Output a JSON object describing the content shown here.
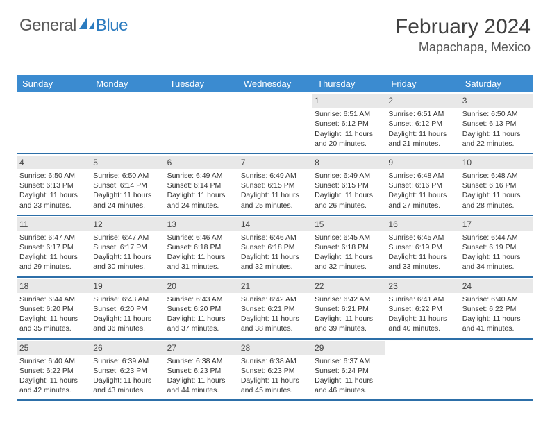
{
  "brand": {
    "name_part1": "General",
    "name_part2": "Blue",
    "accent_color": "#2b7bbf"
  },
  "header": {
    "month_title": "February 2024",
    "location": "Mapachapa, Mexico"
  },
  "colors": {
    "header_bg": "#3b8bd0",
    "row_border": "#2d6fa8",
    "daynum_bg": "#e8e8e8",
    "text": "#333333"
  },
  "layout": {
    "columns": 7,
    "rows": 5,
    "cell_font_size": 10.5
  },
  "day_names": [
    "Sunday",
    "Monday",
    "Tuesday",
    "Wednesday",
    "Thursday",
    "Friday",
    "Saturday"
  ],
  "weeks": [
    [
      null,
      null,
      null,
      null,
      {
        "n": 1,
        "sr": "6:51 AM",
        "ss": "6:12 PM",
        "dh": "11",
        "dm": "20"
      },
      {
        "n": 2,
        "sr": "6:51 AM",
        "ss": "6:12 PM",
        "dh": "11",
        "dm": "21"
      },
      {
        "n": 3,
        "sr": "6:50 AM",
        "ss": "6:13 PM",
        "dh": "11",
        "dm": "22"
      }
    ],
    [
      {
        "n": 4,
        "sr": "6:50 AM",
        "ss": "6:13 PM",
        "dh": "11",
        "dm": "23"
      },
      {
        "n": 5,
        "sr": "6:50 AM",
        "ss": "6:14 PM",
        "dh": "11",
        "dm": "24"
      },
      {
        "n": 6,
        "sr": "6:49 AM",
        "ss": "6:14 PM",
        "dh": "11",
        "dm": "24"
      },
      {
        "n": 7,
        "sr": "6:49 AM",
        "ss": "6:15 PM",
        "dh": "11",
        "dm": "25"
      },
      {
        "n": 8,
        "sr": "6:49 AM",
        "ss": "6:15 PM",
        "dh": "11",
        "dm": "26"
      },
      {
        "n": 9,
        "sr": "6:48 AM",
        "ss": "6:16 PM",
        "dh": "11",
        "dm": "27"
      },
      {
        "n": 10,
        "sr": "6:48 AM",
        "ss": "6:16 PM",
        "dh": "11",
        "dm": "28"
      }
    ],
    [
      {
        "n": 11,
        "sr": "6:47 AM",
        "ss": "6:17 PM",
        "dh": "11",
        "dm": "29"
      },
      {
        "n": 12,
        "sr": "6:47 AM",
        "ss": "6:17 PM",
        "dh": "11",
        "dm": "30"
      },
      {
        "n": 13,
        "sr": "6:46 AM",
        "ss": "6:18 PM",
        "dh": "11",
        "dm": "31"
      },
      {
        "n": 14,
        "sr": "6:46 AM",
        "ss": "6:18 PM",
        "dh": "11",
        "dm": "32"
      },
      {
        "n": 15,
        "sr": "6:45 AM",
        "ss": "6:18 PM",
        "dh": "11",
        "dm": "32"
      },
      {
        "n": 16,
        "sr": "6:45 AM",
        "ss": "6:19 PM",
        "dh": "11",
        "dm": "33"
      },
      {
        "n": 17,
        "sr": "6:44 AM",
        "ss": "6:19 PM",
        "dh": "11",
        "dm": "34"
      }
    ],
    [
      {
        "n": 18,
        "sr": "6:44 AM",
        "ss": "6:20 PM",
        "dh": "11",
        "dm": "35"
      },
      {
        "n": 19,
        "sr": "6:43 AM",
        "ss": "6:20 PM",
        "dh": "11",
        "dm": "36"
      },
      {
        "n": 20,
        "sr": "6:43 AM",
        "ss": "6:20 PM",
        "dh": "11",
        "dm": "37"
      },
      {
        "n": 21,
        "sr": "6:42 AM",
        "ss": "6:21 PM",
        "dh": "11",
        "dm": "38"
      },
      {
        "n": 22,
        "sr": "6:42 AM",
        "ss": "6:21 PM",
        "dh": "11",
        "dm": "39"
      },
      {
        "n": 23,
        "sr": "6:41 AM",
        "ss": "6:22 PM",
        "dh": "11",
        "dm": "40"
      },
      {
        "n": 24,
        "sr": "6:40 AM",
        "ss": "6:22 PM",
        "dh": "11",
        "dm": "41"
      }
    ],
    [
      {
        "n": 25,
        "sr": "6:40 AM",
        "ss": "6:22 PM",
        "dh": "11",
        "dm": "42"
      },
      {
        "n": 26,
        "sr": "6:39 AM",
        "ss": "6:23 PM",
        "dh": "11",
        "dm": "43"
      },
      {
        "n": 27,
        "sr": "6:38 AM",
        "ss": "6:23 PM",
        "dh": "11",
        "dm": "44"
      },
      {
        "n": 28,
        "sr": "6:38 AM",
        "ss": "6:23 PM",
        "dh": "11",
        "dm": "45"
      },
      {
        "n": 29,
        "sr": "6:37 AM",
        "ss": "6:24 PM",
        "dh": "11",
        "dm": "46"
      },
      null,
      null
    ]
  ],
  "labels": {
    "sunrise": "Sunrise:",
    "sunset": "Sunset:",
    "daylight": "Daylight:",
    "hours_word": "hours",
    "and_word": "and",
    "minutes_word": "minutes."
  }
}
